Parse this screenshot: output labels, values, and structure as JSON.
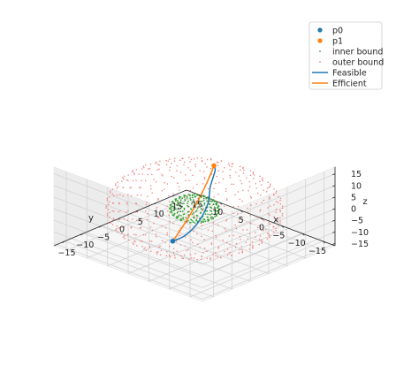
{
  "chart_data": {
    "type": "scatter3d",
    "title": "",
    "axes": {
      "x": {
        "label": "x",
        "ticks": [
          15,
          10,
          5,
          0,
          -5,
          -10,
          -15
        ],
        "range": [
          -18,
          18
        ]
      },
      "y": {
        "label": "y",
        "ticks": [
          15,
          10,
          5,
          0,
          -5,
          -10,
          -15
        ],
        "range": [
          -18,
          18
        ]
      },
      "z": {
        "label": "z",
        "ticks": [
          15,
          10,
          5,
          0,
          -5,
          -10,
          -15
        ],
        "range": [
          -16,
          18
        ]
      }
    },
    "grid": true,
    "legend_position": "top-right",
    "legend": [
      {
        "label": "p0",
        "kind": "point",
        "color": "#1f77b4"
      },
      {
        "label": "p1",
        "kind": "point",
        "color": "#ff7f0e"
      },
      {
        "label": "inner bound",
        "kind": "dots",
        "color": "#2ca02c"
      },
      {
        "label": "outer bound",
        "kind": "dots",
        "color": "#f08080"
      },
      {
        "label": "Feasible",
        "kind": "line",
        "color": "#1f77b4"
      },
      {
        "label": "Efficient",
        "kind": "line",
        "color": "#ff7f0e"
      }
    ],
    "points": {
      "p0": {
        "x": -5,
        "y": -11.5,
        "z": -3,
        "color": "#1f77b4"
      },
      "p1": {
        "x": 6,
        "y": 12,
        "z": 6.5,
        "color": "#ff7f0e"
      }
    },
    "inner_bound": {
      "radius": 4.5,
      "center": [
        0,
        0,
        0
      ],
      "color": "#2ca02c"
    },
    "outer_bound": {
      "radius": 16,
      "center": [
        0,
        0,
        0
      ],
      "color": "#f08080"
    },
    "series": [
      {
        "name": "Feasible",
        "color": "#1f77b4",
        "points": [
          [
            -5,
            -11.5,
            -3
          ],
          [
            -4,
            -7,
            -4.2
          ],
          [
            -1,
            0,
            -5
          ],
          [
            3,
            7,
            -4.5
          ],
          [
            6,
            11,
            -2
          ],
          [
            7.5,
            14,
            2
          ],
          [
            6,
            12,
            6.5
          ]
        ]
      },
      {
        "name": "Efficient",
        "color": "#ff7f0e",
        "points": [
          [
            -5,
            -11.5,
            -3
          ],
          [
            -3.5,
            -8,
            -2.2
          ],
          [
            -1.5,
            -3.5,
            -0.9
          ],
          [
            0.8,
            1.5,
            0.8
          ],
          [
            3,
            6,
            2.7
          ],
          [
            5,
            10,
            4.9
          ],
          [
            6,
            12,
            6.5
          ]
        ]
      }
    ]
  }
}
